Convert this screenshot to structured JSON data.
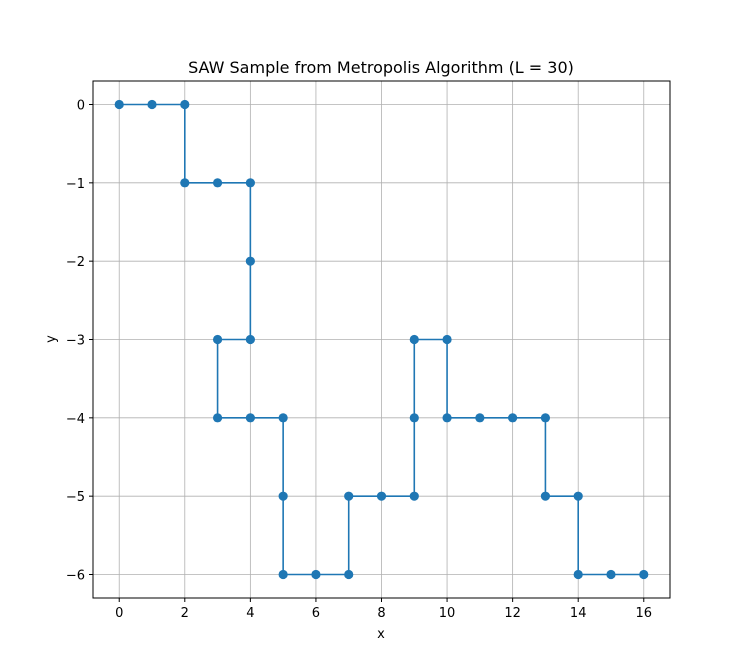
{
  "chart_data": {
    "type": "line",
    "title": "SAW Sample from Metropolis Algorithm (L = 30)",
    "xlabel": "x",
    "ylabel": "y",
    "xlim": [
      -0.8,
      16.8
    ],
    "ylim": [
      -6.3,
      0.3
    ],
    "xticks": [
      0,
      2,
      4,
      6,
      8,
      10,
      12,
      14,
      16
    ],
    "xtick_labels": [
      "0",
      "2",
      "4",
      "6",
      "8",
      "10",
      "12",
      "14",
      "16"
    ],
    "yticks": [
      0,
      -1,
      -2,
      -3,
      -4,
      -5,
      -6
    ],
    "ytick_labels": [
      "0",
      "−1",
      "−2",
      "−3",
      "−4",
      "−5",
      "−6"
    ],
    "grid": true,
    "marker": "circle",
    "color": "#1f77b4",
    "series": [
      {
        "points": [
          [
            0,
            0
          ],
          [
            1,
            0
          ],
          [
            2,
            0
          ],
          [
            2,
            -1
          ],
          [
            3,
            -1
          ],
          [
            4,
            -1
          ],
          [
            4,
            -2
          ],
          [
            4,
            -3
          ],
          [
            3,
            -3
          ],
          [
            3,
            -4
          ],
          [
            4,
            -4
          ],
          [
            5,
            -4
          ],
          [
            5,
            -5
          ],
          [
            5,
            -6
          ],
          [
            6,
            -6
          ],
          [
            7,
            -6
          ],
          [
            7,
            -5
          ],
          [
            8,
            -5
          ],
          [
            9,
            -5
          ],
          [
            9,
            -4
          ],
          [
            9,
            -3
          ],
          [
            10,
            -3
          ],
          [
            10,
            -4
          ],
          [
            11,
            -4
          ],
          [
            12,
            -4
          ],
          [
            13,
            -4
          ],
          [
            13,
            -5
          ],
          [
            14,
            -5
          ],
          [
            14,
            -6
          ],
          [
            15,
            -6
          ],
          [
            16,
            -6
          ]
        ]
      }
    ]
  }
}
